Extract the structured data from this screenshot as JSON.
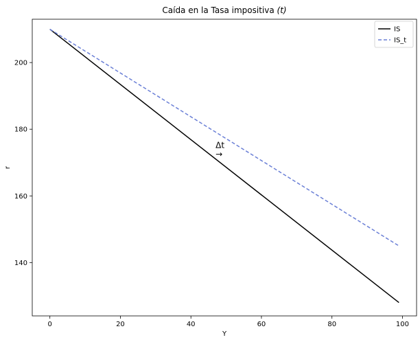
{
  "chart_data": {
    "type": "line",
    "title": "Caída en la Tasa impositiva",
    "title_symbol": "(t)",
    "xlabel": "Y",
    "ylabel": "r",
    "xlim": [
      -5,
      104
    ],
    "ylim": [
      124,
      213
    ],
    "xticks": [
      0,
      20,
      40,
      60,
      80,
      100
    ],
    "yticks": [
      140,
      160,
      180,
      200
    ],
    "grid": false,
    "legend_position": "top-right",
    "series": [
      {
        "name": "IS",
        "color": "#000000",
        "style": "solid",
        "x": [
          0,
          99
        ],
        "y": [
          210,
          128
        ]
      },
      {
        "name": "IS_t",
        "color": "#6a7fd6",
        "style": "dashed",
        "x": [
          0,
          99
        ],
        "y": [
          210,
          145
        ]
      }
    ],
    "annotations": [
      {
        "text": "Δt",
        "arrow": "→",
        "x": 47,
        "y": 174
      }
    ]
  }
}
